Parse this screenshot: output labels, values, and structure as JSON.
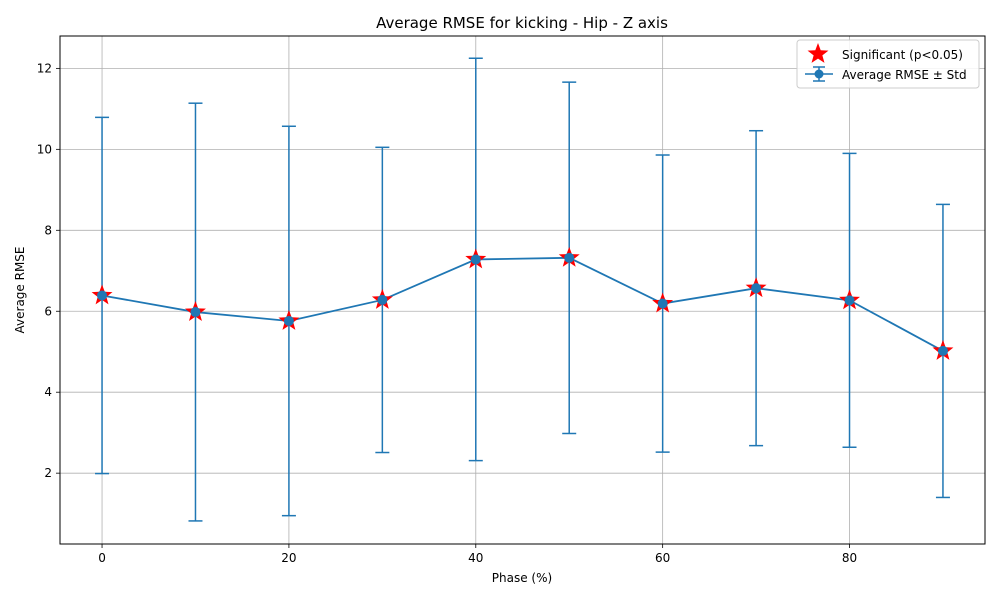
{
  "chart_data": {
    "type": "line",
    "title": "Average RMSE for kicking - Hip - Z axis",
    "xlabel": "Phase (%)",
    "ylabel": "Average RMSE",
    "xlim": [
      -4.5,
      94.5
    ],
    "ylim": [
      0.25,
      12.8
    ],
    "xticks": [
      0,
      20,
      40,
      60,
      80
    ],
    "yticks": [
      2,
      4,
      6,
      8,
      10,
      12
    ],
    "grid": true,
    "legend_position": "top-right",
    "series": [
      {
        "name": "Average RMSE ± Std",
        "kind": "errorbar",
        "color": "#1f77b4",
        "x": [
          0,
          10,
          20,
          30,
          40,
          50,
          60,
          70,
          80,
          90
        ],
        "y": [
          6.39,
          5.98,
          5.76,
          6.28,
          7.28,
          7.32,
          6.19,
          6.57,
          6.27,
          5.02
        ],
        "std": [
          4.4,
          5.16,
          4.81,
          3.77,
          4.97,
          4.34,
          3.67,
          3.89,
          3.63,
          3.62
        ]
      },
      {
        "name": "Significant (p<0.05)",
        "kind": "marker",
        "marker": "star",
        "color": "#ff0000",
        "x": [
          0,
          10,
          20,
          30,
          40,
          50,
          60,
          70,
          80,
          90
        ],
        "y": [
          6.39,
          5.98,
          5.76,
          6.28,
          7.28,
          7.32,
          6.19,
          6.57,
          6.27,
          5.02
        ]
      }
    ]
  }
}
